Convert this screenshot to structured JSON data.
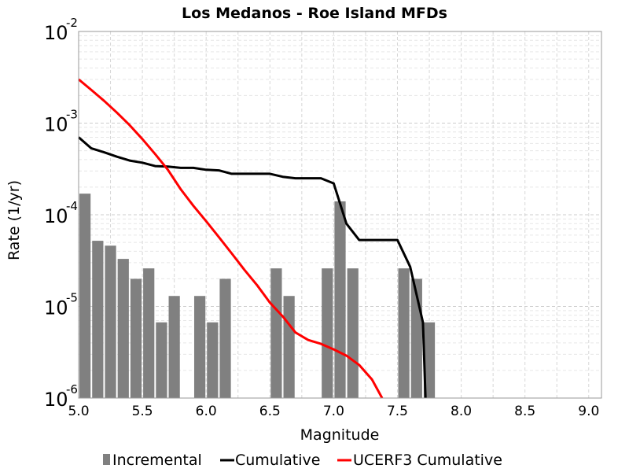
{
  "chart_data": {
    "type": "bar",
    "title": "Los Medanos - Roe Island MFDs",
    "xlabel": "Magnitude",
    "ylabel": "Rate (1/yr)",
    "xlim": [
      5.0,
      9.1
    ],
    "ylim": [
      1e-06,
      0.01
    ],
    "y_scale": "log",
    "grid": true,
    "legend_position": "bottom",
    "x_ticks": [
      "5.0",
      "5.5",
      "6.0",
      "6.5",
      "7.0",
      "7.5",
      "8.0",
      "8.5",
      "9.0"
    ],
    "y_ticks": [
      {
        "base": "10",
        "exp": "-6",
        "value": 1e-06
      },
      {
        "base": "10",
        "exp": "-5",
        "value": 1e-05
      },
      {
        "base": "10",
        "exp": "-4",
        "value": 0.0001
      },
      {
        "base": "10",
        "exp": "-3",
        "value": 0.001
      },
      {
        "base": "10",
        "exp": "-2",
        "value": 0.01
      }
    ],
    "series": [
      {
        "name": "Incremental",
        "kind": "bar",
        "color": "#808080",
        "x": [
          5.05,
          5.15,
          5.25,
          5.35,
          5.45,
          5.55,
          5.65,
          5.75,
          5.95,
          6.05,
          6.15,
          6.55,
          6.65,
          6.95,
          7.05,
          7.15,
          7.55,
          7.65,
          7.75
        ],
        "values": [
          0.00017,
          5.2e-05,
          4.6e-05,
          3.3e-05,
          2e-05,
          2.6e-05,
          6.7e-06,
          1.3e-05,
          1.3e-05,
          6.7e-06,
          2e-05,
          2.6e-05,
          1.3e-05,
          2.6e-05,
          0.00014,
          2.6e-05,
          2.6e-05,
          2e-05,
          6.7e-06
        ]
      },
      {
        "name": "Cumulative",
        "kind": "line",
        "color": "#000000",
        "points": [
          [
            5.0,
            0.0007
          ],
          [
            5.1,
            0.00053
          ],
          [
            5.2,
            0.00048
          ],
          [
            5.3,
            0.00043
          ],
          [
            5.4,
            0.00039
          ],
          [
            5.5,
            0.00037
          ],
          [
            5.6,
            0.00034
          ],
          [
            5.7,
            0.000335
          ],
          [
            5.8,
            0.000325
          ],
          [
            5.9,
            0.000325
          ],
          [
            6.0,
            0.00031
          ],
          [
            6.1,
            0.000305
          ],
          [
            6.2,
            0.00028
          ],
          [
            6.5,
            0.00028
          ],
          [
            6.6,
            0.00026
          ],
          [
            6.7,
            0.00025
          ],
          [
            6.9,
            0.00025
          ],
          [
            7.0,
            0.00022
          ],
          [
            7.1,
            8e-05
          ],
          [
            7.2,
            5.3e-05
          ],
          [
            7.5,
            5.3e-05
          ],
          [
            7.6,
            2.7e-05
          ],
          [
            7.7,
            6.7e-06
          ],
          [
            7.72,
            1e-06
          ]
        ]
      },
      {
        "name": "UCERF3 Cumulative",
        "kind": "line",
        "color": "#ff0000",
        "points": [
          [
            5.0,
            0.003
          ],
          [
            5.1,
            0.0023
          ],
          [
            5.2,
            0.00175
          ],
          [
            5.3,
            0.0013
          ],
          [
            5.4,
            0.00095
          ],
          [
            5.5,
            0.00067
          ],
          [
            5.6,
            0.00046
          ],
          [
            5.7,
            0.00031
          ],
          [
            5.8,
            0.00019
          ],
          [
            5.9,
            0.000125
          ],
          [
            6.0,
            8.5e-05
          ],
          [
            6.1,
            5.7e-05
          ],
          [
            6.2,
            3.8e-05
          ],
          [
            6.3,
            2.5e-05
          ],
          [
            6.4,
            1.7e-05
          ],
          [
            6.5,
            1.1e-05
          ],
          [
            6.6,
            7.8e-06
          ],
          [
            6.7,
            5.2e-06
          ],
          [
            6.8,
            4.3e-06
          ],
          [
            6.9,
            3.9e-06
          ],
          [
            7.0,
            3.4e-06
          ],
          [
            7.1,
            2.9e-06
          ],
          [
            7.2,
            2.3e-06
          ],
          [
            7.3,
            1.6e-06
          ],
          [
            7.38,
            1e-06
          ]
        ]
      }
    ]
  }
}
